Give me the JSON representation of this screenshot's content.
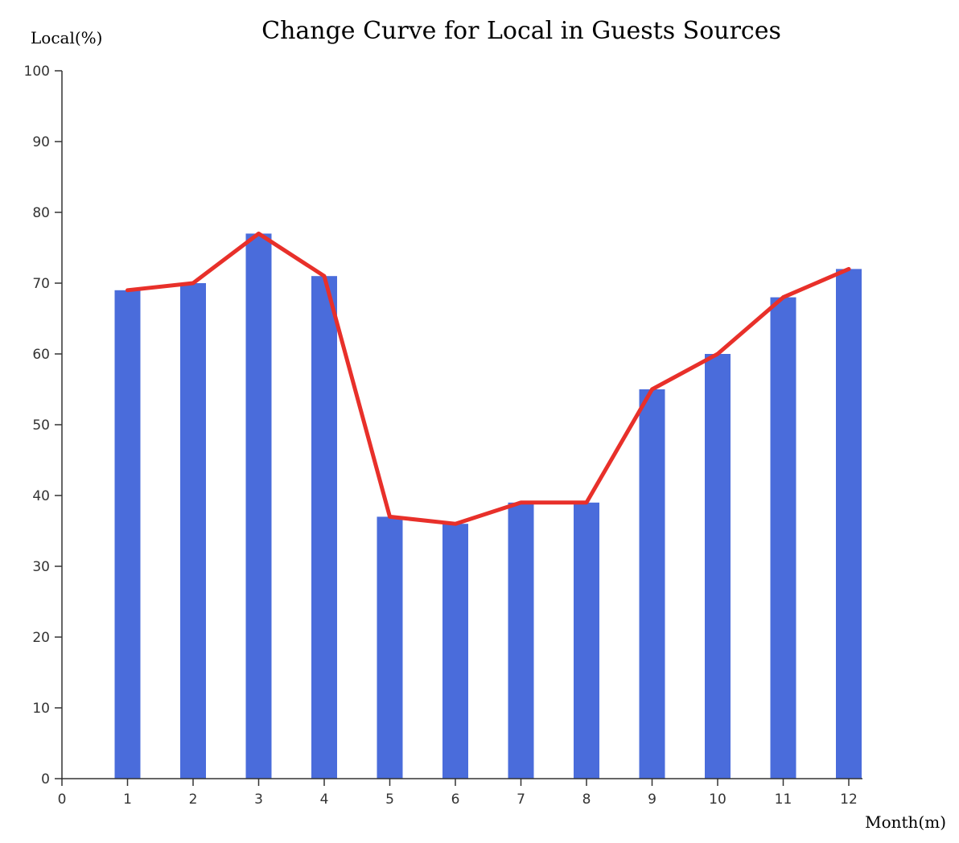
{
  "chart_data": {
    "type": "bar",
    "title": "Change Curve for Local in Guests Sources",
    "xlabel": "Month(m)",
    "ylabel": "Local(%)",
    "x_ticks": [
      "0",
      "1",
      "2",
      "3",
      "4",
      "5",
      "6",
      "7",
      "8",
      "9",
      "10",
      "11",
      "12"
    ],
    "y_ticks": [
      "0",
      "10",
      "20",
      "30",
      "40",
      "50",
      "60",
      "70",
      "80",
      "90",
      "100"
    ],
    "xlim": [
      0,
      12
    ],
    "ylim": [
      0,
      100
    ],
    "grid": false,
    "categories": [
      1,
      2,
      3,
      4,
      5,
      6,
      7,
      8,
      9,
      10,
      11,
      12
    ],
    "series": [
      {
        "type": "bar",
        "values": [
          69,
          70,
          77,
          71,
          37,
          36,
          39,
          39,
          55,
          60,
          68,
          72
        ],
        "color": "#4a6cdb"
      },
      {
        "type": "line",
        "values": [
          69,
          70,
          77,
          71,
          37,
          36,
          39,
          39,
          55,
          60,
          68,
          72
        ],
        "color": "#e8302a"
      }
    ]
  }
}
